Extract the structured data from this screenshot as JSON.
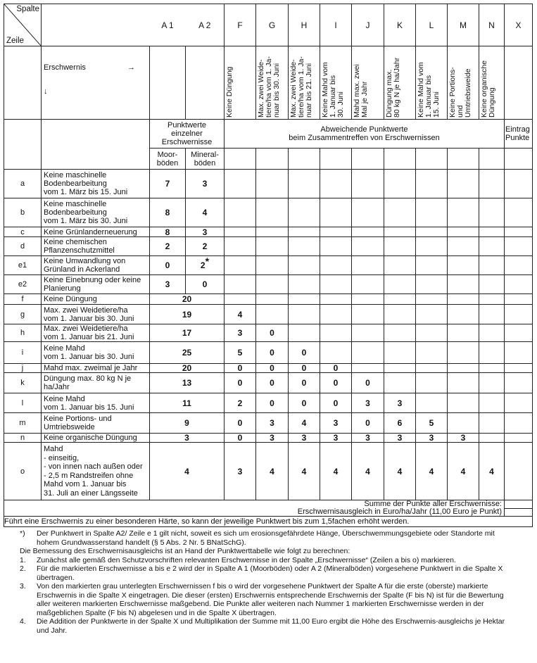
{
  "header": {
    "corner_top": "Spalte",
    "corner_bottom": "Zeile",
    "a1": "A 1",
    "a2": "A 2",
    "columns": [
      "F",
      "G",
      "H",
      "I",
      "J",
      "K",
      "L",
      "M",
      "N",
      "X"
    ],
    "erschwernis": "Erschwernis",
    "arrow_right": "→",
    "arrow_down": "↓",
    "rotated": [
      "Keine Düngung",
      "Max. zwei Weide-\ntiere/ha vom 1. Ja-\nnuar bis 30. Juni",
      "Max. zwei Weide-\ntiere/ha vom 1. Ja-\nnuar bis 21. Juni",
      "Keine Mahd vom\n1. Januar  bis\n30. Juni",
      "Mahd max. zwei\nMal je Jahr",
      "Düngung max.\n80 kg N je ha/Jahr",
      "Keine Mahd vom\n1. Januar bis\n15. Juni",
      "Keine Portions-\nund\nUmtriebsweide",
      "Keine organische\nDüngung"
    ],
    "punktwerte": "Punktwerte einzelner Erschwernisse",
    "abweichende": "Abweichende Punktwerte\nbeim Zusammentreffen von Erschwernissen",
    "eintrag": "Eintrag\nPunkte",
    "moor": "Moor-\nböden",
    "mineral": "Mineral-\nböden"
  },
  "rows_a": [
    {
      "id": "a",
      "text": "Keine maschinelle\nBodenbearbeitung\nvom 1. März bis 15. Juni",
      "a1": "7",
      "a2": "3"
    },
    {
      "id": "b",
      "text": "Keine maschinelle\nBodenbearbeitung\nvom 1. März bis 30. Juni",
      "a1": "8",
      "a2": "4"
    },
    {
      "id": "c",
      "text": "Keine Grünlanderneuerung",
      "a1": "8",
      "a2": "3"
    },
    {
      "id": "d",
      "text": "Keine chemischen\nPflanzenschutzmittel",
      "a1": "2",
      "a2": "2"
    },
    {
      "id": "e1",
      "text": "Keine Umwandlung von\nGrünland in Ackerland",
      "a1": "0",
      "a2": "2",
      "a2_mark": "*"
    },
    {
      "id": "e2",
      "text": "Keine Einebnung oder keine\nPlanierung",
      "a1": "3",
      "a2": "0"
    }
  ],
  "rows_f": [
    {
      "id": "f",
      "text": "Keine Düngung",
      "a": "20",
      "values": []
    },
    {
      "id": "g",
      "text": "Max. zwei Weidetiere/ha\nvom 1. Januar bis 30. Juni",
      "a": "19",
      "values": [
        "4"
      ]
    },
    {
      "id": "h",
      "text": "Max. zwei Weidetiere/ha\nvom 1. Januar bis 21. Juni",
      "a": "17",
      "values": [
        "3",
        "0"
      ]
    },
    {
      "id": "i",
      "text": "Keine Mahd\nvom 1. Januar bis 30. Juni",
      "a": "25",
      "values": [
        "5",
        "0",
        "0"
      ]
    },
    {
      "id": "j",
      "text": "Mahd max. zweimal je Jahr",
      "a": "20",
      "values": [
        "0",
        "0",
        "0",
        "0"
      ]
    },
    {
      "id": "k",
      "text": "Düngung max. 80 kg N je\nha/Jahr",
      "a": "13",
      "values": [
        "0",
        "0",
        "0",
        "0",
        "0"
      ]
    },
    {
      "id": "l",
      "text": "Keine Mahd\nvom 1. Januar bis 15. Juni",
      "a": "11",
      "values": [
        "2",
        "0",
        "0",
        "0",
        "3",
        "3"
      ]
    },
    {
      "id": "m",
      "text": "Keine Portions- und\nUmtriebsweide",
      "a": "9",
      "values": [
        "0",
        "3",
        "4",
        "3",
        "0",
        "6",
        "5"
      ]
    },
    {
      "id": "n",
      "text": "Keine organische Düngung",
      "a": "3",
      "values": [
        "0",
        "3",
        "3",
        "3",
        "3",
        "3",
        "3",
        "3"
      ]
    },
    {
      "id": "o",
      "text": "Mahd\n- einseitig,\n- von innen nach außen oder\n- 2,5 m Randstreifen ohne\n  Mahd vom 1. Januar bis\n  31. Juli an einer Längsseite",
      "a": "4",
      "values": [
        "3",
        "4",
        "4",
        "4",
        "4",
        "4",
        "4",
        "4",
        "4"
      ]
    }
  ],
  "summary": "Summe der Punkte aller Erschwernisse:\nErschwernisausgleich in Euro/ha/Jahr (11,00 Euro je Punkt)",
  "haerte": "Führt eine Erschwernis zu einer besonderen Härte, so kann der jeweilige Punktwert bis zum 1,5fachen erhöht werden.",
  "footnote": {
    "mark": "*)",
    "text": "Der Punktwert in Spalte A2/ Zeile e 1 gilt nicht, soweit es sich um erosionsgefährdete Hänge, Überschwemmungsgebiete oder Standorte mit hohem Grundwasserstand handelt (§ 5 Abs. 2 Nr. 5 BNatSchG)."
  },
  "intro": "Die Bemessung des Erschwernisausgleichs ist an Hand der Punktwerttabelle wie folgt zu berechnen:",
  "steps": [
    {
      "n": "1.",
      "t": "Zunächst alle gemäß den Schutzvorschriften relevanten Erschwernisse in der Spalte „Erschwernisse“ (Zeilen a bis o) markieren."
    },
    {
      "n": "2.",
      "t": "Für die markierten Erschwernisse a bis e 2 wird der in Spalte A 1 (Moorböden) oder A 2 (Mineralböden) vorgesehene Punktwert in die Spalte X übertragen."
    },
    {
      "n": "3.",
      "t": "Von den markierten grau unterlegten Erschwernissen f bis o wird der vorgesehene Punktwert der Spalte A für die erste (oberste) markierte Erschwernis in die Spalte X eingetragen. Die dieser (ersten) Erschwernis entsprechende Erschwernis der Spalte (F bis N) ist für die Bewertung aller weiteren markierten Erschwernisse maßgebend. Die Punkte aller weiteren nach Nummer 1 markierten Erschwernisse werden in der maßgeblichen Spalte (F bis N) abgelesen und in die Spalte X übertragen."
    },
    {
      "n": "4.",
      "t": "Die Addition der Punktwerte in der Spalte X und Multiplikation der Summe mit 11,00 Euro ergibt die Höhe des Erschwernis-ausgleichs je Hektar und Jahr."
    }
  ]
}
